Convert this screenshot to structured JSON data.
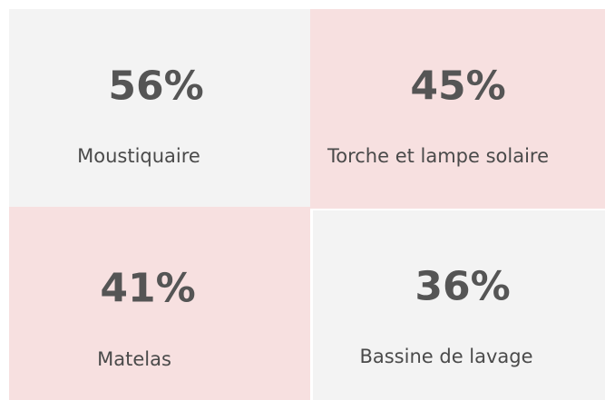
{
  "tiles": [
    {
      "value": "56%",
      "label": "Moustiquaire"
    },
    {
      "value": "45%",
      "label": "Torche et lampe solaire"
    },
    {
      "value": "41%",
      "label": "Matelas"
    },
    {
      "value": "36%",
      "label": "Bassine de lavage"
    }
  ]
}
